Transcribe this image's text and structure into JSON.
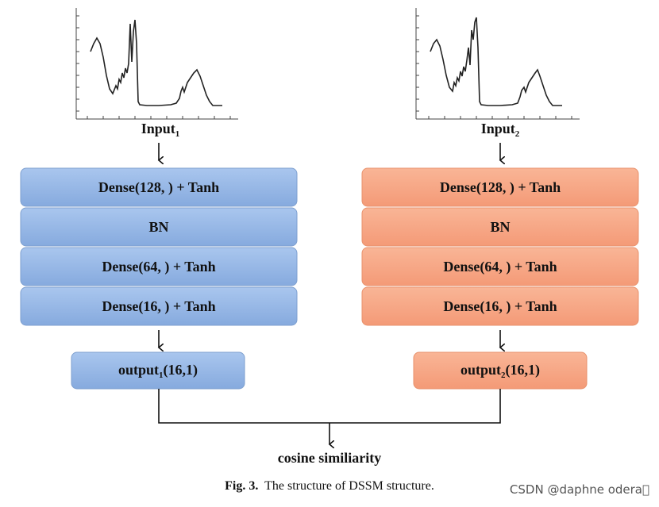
{
  "left": {
    "input_label": "Input",
    "input_sub": "1",
    "layers": [
      "Dense(128,  ) + Tanh",
      "BN",
      "Dense(64,  ) + Tanh",
      "Dense(16,  ) + Tanh"
    ],
    "output_label": "output",
    "output_sub": "1",
    "output_dims": "(16,1)",
    "color": "#8fb4e3"
  },
  "right": {
    "input_label": "Input",
    "input_sub": "2",
    "layers": [
      "Dense(128,  ) + Tanh",
      "BN",
      "Dense(64,  ) + Tanh",
      "Dense(16,  ) + Tanh"
    ],
    "output_label": "output",
    "output_sub": "2",
    "output_dims": "(16,1)",
    "color": "#f6a483"
  },
  "merge_label": "cosine similiarity",
  "caption": {
    "fig": "Fig. 3.",
    "text": "The structure of DSSM structure."
  },
  "watermark": "CSDN @daphne odera\u0000"
}
